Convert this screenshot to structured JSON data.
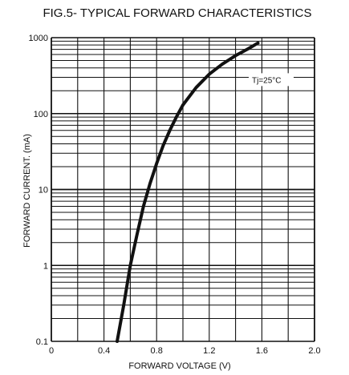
{
  "chart_data": {
    "type": "line",
    "title": "FIG.5- TYPICAL FORWARD CHARACTERISTICS",
    "xlabel": "FORWARD VOLTAGE (V)",
    "ylabel": "FORWARD CURRENT. (mA)",
    "xlim": [
      0,
      2.0
    ],
    "ylim": [
      0.1,
      1000
    ],
    "yscale": "log",
    "grid": true,
    "x_ticks": [
      "0",
      "0.4",
      "0.8",
      "1.2",
      "1.6",
      "2.0"
    ],
    "y_ticks": [
      "0.1",
      "1",
      "10",
      "100",
      "1000"
    ],
    "annotation": "Tj=25°C",
    "series": [
      {
        "x": [
          0.5,
          0.55,
          0.6,
          0.65,
          0.7,
          0.75,
          0.8,
          0.85,
          0.9,
          0.95,
          1.0,
          1.1,
          1.2,
          1.3,
          1.4,
          1.5,
          1.57
        ],
        "y": [
          0.1,
          0.3,
          1,
          2.5,
          6,
          12,
          22,
          38,
          60,
          90,
          130,
          220,
          330,
          450,
          580,
          720,
          850
        ]
      }
    ]
  }
}
